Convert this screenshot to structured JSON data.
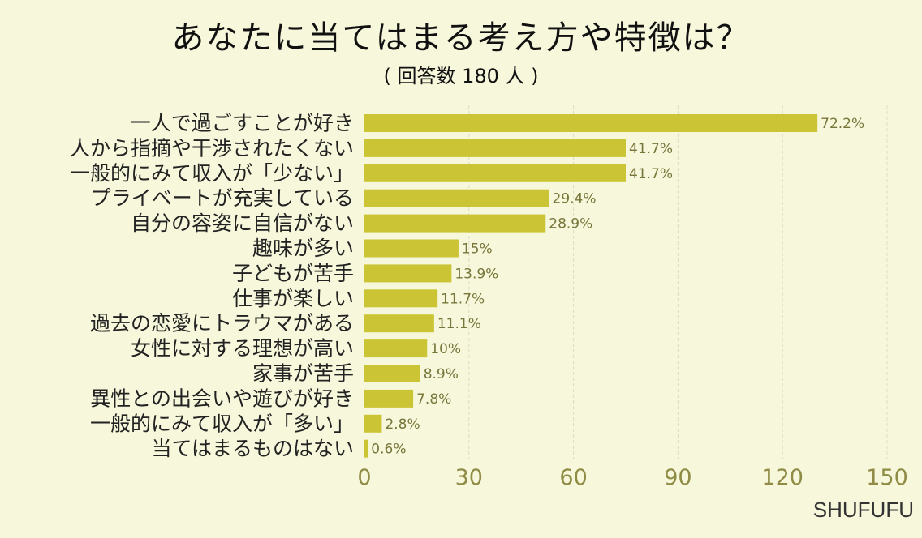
{
  "chart_data": {
    "type": "bar",
    "orientation": "horizontal",
    "title": "あなたに当てはまる考え方や特徴は？",
    "subtitle": "( 回答数 180 人 )",
    "categories": [
      "一人で過ごすことが好き",
      "人から指摘や干渉されたくない",
      "一般的にみて収入が「少ない」",
      "プライベートが充実している",
      "自分の容姿に自信がない",
      "趣味が多い",
      "子どもが苦手",
      "仕事が楽しい",
      "過去の恋愛にトラウマがある",
      "女性に対する理想が高い",
      "家事が苦手",
      "異性との出会いや遊びが好き",
      "一般的にみて収入が「多い」",
      "当てはまるものはない"
    ],
    "values": [
      130,
      75,
      75,
      53,
      52,
      27,
      25,
      21,
      20,
      18,
      16,
      14,
      5,
      1
    ],
    "value_labels": [
      "72.2%",
      "41.7%",
      "41.7%",
      "29.4%",
      "28.9%",
      "15%",
      "13.9%",
      "11.7%",
      "11.1%",
      "10%",
      "8.9%",
      "7.8%",
      "2.8%",
      "0.6%"
    ],
    "xlim": [
      0,
      150
    ],
    "xticks": [
      0,
      30,
      60,
      90,
      120,
      150
    ],
    "grid": true,
    "bar_color": "#cbc535",
    "grid_color": "#dcdcc4"
  },
  "brand": "SHUFUFU"
}
